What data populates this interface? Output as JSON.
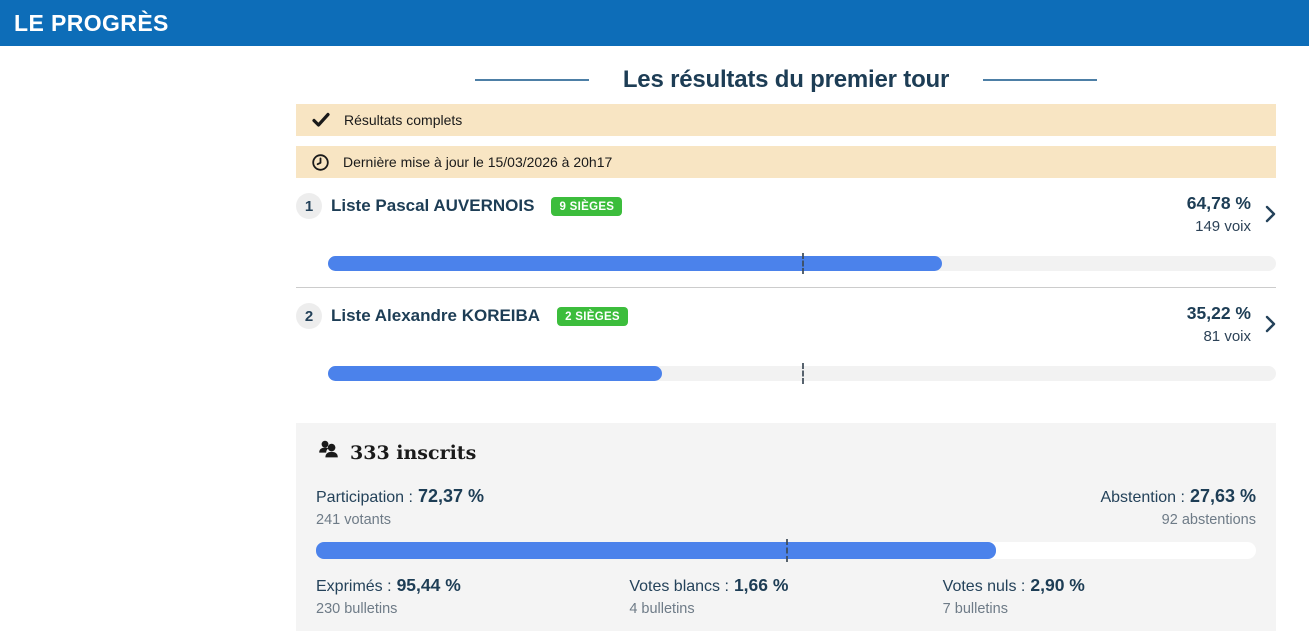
{
  "brand": {
    "logo": "LE PROGRÈS"
  },
  "title": "Les résultats du premier tour",
  "banners": [
    {
      "icon": "check-icon",
      "text": "Résultats complets"
    },
    {
      "icon": "clock-icon",
      "text": "Dernière mise à jour le 15/03/2026 à 20h17"
    }
  ],
  "candidates": [
    {
      "rank": "1",
      "name": "Liste Pascal AUVERNOIS",
      "seats_badge": "9 SIÈGES",
      "percent_label": "64,78 %",
      "votes_label": "149 voix",
      "percent_value": 64.78
    },
    {
      "rank": "2",
      "name": "Liste Alexandre KOREIBA",
      "seats_badge": "2 SIÈGES",
      "percent_label": "35,22 %",
      "votes_label": "81 voix",
      "percent_value": 35.22
    }
  ],
  "majority_marker_percent": 50,
  "stats": {
    "inscrits": "333 inscrits",
    "participation": {
      "label": "Participation :",
      "value": "72,37 %",
      "sub": "241 votants",
      "percent_value": 72.37
    },
    "abstention": {
      "label": "Abstention :",
      "value": "27,63 %",
      "sub": "92 abstentions"
    },
    "exprimes": {
      "label": "Exprimés :",
      "value": "95,44 %",
      "sub": "230 bulletins"
    },
    "votes_blancs": {
      "label": "Votes blancs :",
      "value": "1,66 %",
      "sub": "4 bulletins"
    },
    "votes_nuls": {
      "label": "Votes nuls :",
      "value": "2,90 %",
      "sub": "7 bulletins"
    }
  },
  "colors": {
    "header_blue": "#0d6db8",
    "accent_blue": "#4b82eb",
    "badge_green": "#3cbd3c",
    "banner_cream": "#f8e5c3",
    "navy_text": "#1d3d55",
    "panel_gray": "#f4f4f4"
  }
}
